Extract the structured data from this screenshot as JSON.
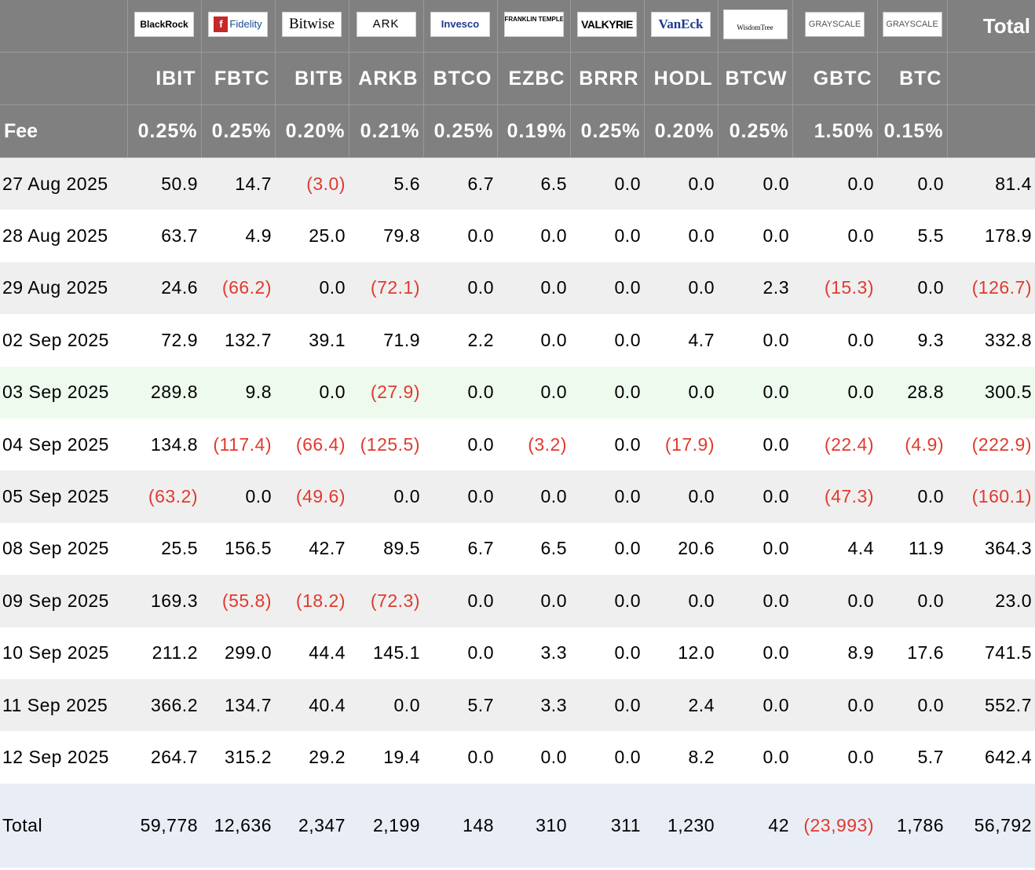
{
  "header": {
    "total_label": "Total",
    "fee_label": "Fee",
    "funds": [
      {
        "issuer": "BlackRock",
        "logo_icon": "blackrock-logo",
        "ticker": "IBIT",
        "fee": "0.25%"
      },
      {
        "issuer": "Fidelity",
        "logo_icon": "fidelity-logo",
        "ticker": "FBTC",
        "fee": "0.25%"
      },
      {
        "issuer": "Bitwise",
        "logo_icon": "bitwise-logo",
        "ticker": "BITB",
        "fee": "0.20%"
      },
      {
        "issuer": "ARK",
        "logo_icon": "ark-invest-logo",
        "ticker": "ARKB",
        "fee": "0.21%"
      },
      {
        "issuer": "Invesco",
        "logo_icon": "invesco-logo",
        "ticker": "BTCO",
        "fee": "0.25%"
      },
      {
        "issuer": "FRANKLIN TEMPLETON",
        "logo_icon": "franklin-templeton-logo",
        "ticker": "EZBC",
        "fee": "0.19%"
      },
      {
        "issuer": "VALKYRIE",
        "logo_icon": "valkyrie-logo",
        "ticker": "BRRR",
        "fee": "0.25%"
      },
      {
        "issuer": "VanEck",
        "logo_icon": "vaneck-logo",
        "ticker": "HODL",
        "fee": "0.20%"
      },
      {
        "issuer": "WisdomTree",
        "logo_icon": "wisdomtree-logo",
        "ticker": "BTCW",
        "fee": "0.25%"
      },
      {
        "issuer": "GRAYSCALE",
        "logo_icon": "grayscale-logo",
        "ticker": "GBTC",
        "fee": "1.50%"
      },
      {
        "issuer": "GRAYSCALE",
        "logo_icon": "grayscale-logo",
        "ticker": "BTC",
        "fee": "0.15%"
      }
    ]
  },
  "rows": [
    {
      "date": "27 Aug 2025",
      "values": [
        "50.9",
        "14.7",
        "(3.0)",
        "5.6",
        "6.7",
        "6.5",
        "0.0",
        "0.0",
        "0.0",
        "0.0",
        "0.0",
        "81.4"
      ]
    },
    {
      "date": "28 Aug 2025",
      "values": [
        "63.7",
        "4.9",
        "25.0",
        "79.8",
        "0.0",
        "0.0",
        "0.0",
        "0.0",
        "0.0",
        "0.0",
        "5.5",
        "178.9"
      ]
    },
    {
      "date": "29 Aug 2025",
      "values": [
        "24.6",
        "(66.2)",
        "0.0",
        "(72.1)",
        "0.0",
        "0.0",
        "0.0",
        "0.0",
        "2.3",
        "(15.3)",
        "0.0",
        "(126.7)"
      ]
    },
    {
      "date": "02 Sep 2025",
      "values": [
        "72.9",
        "132.7",
        "39.1",
        "71.9",
        "2.2",
        "0.0",
        "0.0",
        "4.7",
        "0.0",
        "0.0",
        "9.3",
        "332.8"
      ]
    },
    {
      "date": "03 Sep 2025",
      "values": [
        "289.8",
        "9.8",
        "0.0",
        "(27.9)",
        "0.0",
        "0.0",
        "0.0",
        "0.0",
        "0.0",
        "0.0",
        "28.8",
        "300.5"
      ]
    },
    {
      "date": "04 Sep 2025",
      "values": [
        "134.8",
        "(117.4)",
        "(66.4)",
        "(125.5)",
        "0.0",
        "(3.2)",
        "0.0",
        "(17.9)",
        "0.0",
        "(22.4)",
        "(4.9)",
        "(222.9)"
      ]
    },
    {
      "date": "05 Sep 2025",
      "values": [
        "(63.2)",
        "0.0",
        "(49.6)",
        "0.0",
        "0.0",
        "0.0",
        "0.0",
        "0.0",
        "0.0",
        "(47.3)",
        "0.0",
        "(160.1)"
      ]
    },
    {
      "date": "08 Sep 2025",
      "values": [
        "25.5",
        "156.5",
        "42.7",
        "89.5",
        "6.7",
        "6.5",
        "0.0",
        "20.6",
        "0.0",
        "4.4",
        "11.9",
        "364.3"
      ]
    },
    {
      "date": "09 Sep 2025",
      "values": [
        "169.3",
        "(55.8)",
        "(18.2)",
        "(72.3)",
        "0.0",
        "0.0",
        "0.0",
        "0.0",
        "0.0",
        "0.0",
        "0.0",
        "23.0"
      ]
    },
    {
      "date": "10 Sep 2025",
      "values": [
        "211.2",
        "299.0",
        "44.4",
        "145.1",
        "0.0",
        "3.3",
        "0.0",
        "12.0",
        "0.0",
        "8.9",
        "17.6",
        "741.5"
      ]
    },
    {
      "date": "11 Sep 2025",
      "values": [
        "366.2",
        "134.7",
        "40.4",
        "0.0",
        "5.7",
        "3.3",
        "0.0",
        "2.4",
        "0.0",
        "0.0",
        "0.0",
        "552.7"
      ]
    },
    {
      "date": "12 Sep 2025",
      "values": [
        "264.7",
        "315.2",
        "29.2",
        "19.4",
        "0.0",
        "0.0",
        "0.0",
        "8.2",
        "0.0",
        "0.0",
        "5.7",
        "642.4"
      ]
    }
  ],
  "total_row": {
    "label": "Total",
    "values": [
      "59,778",
      "12,636",
      "2,347",
      "2,199",
      "148",
      "310",
      "311",
      "1,230",
      "42",
      "(23,993)",
      "1,786",
      "56,792"
    ]
  },
  "colors": {
    "header_bg": "#808080",
    "negative": "#e03a2e",
    "row_alt": "#efefef",
    "row_highlight": "#eefaee",
    "total_bg": "#e9edf6"
  }
}
